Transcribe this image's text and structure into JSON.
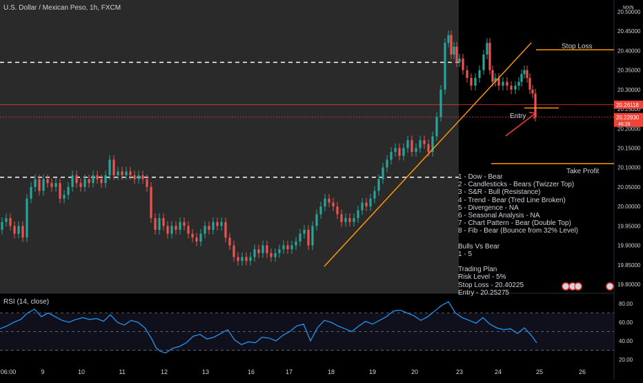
{
  "header": {
    "title": "U.S. Dollar / Mexican Peso, 1h, FXCM"
  },
  "price_axis": {
    "currency": "MXN",
    "ticks": [
      "20.50000",
      "20.45000",
      "20.40000",
      "20.35000",
      "20.30000",
      "20.25000",
      "20.20000",
      "20.15000",
      "20.10000",
      "20.05000",
      "20.00000",
      "19.95000",
      "19.90000",
      "19.85000",
      "19.80000"
    ],
    "current_price_label": "20.26118",
    "last_price_label": "20.22930",
    "countdown_label": "46:28"
  },
  "time_axis": {
    "ticks": [
      "06:00",
      "9",
      "10",
      "11",
      "12",
      "13",
      "16",
      "17",
      "18",
      "19",
      "20",
      "23",
      "24",
      "25",
      "26"
    ]
  },
  "annotations": {
    "stop_loss": "Stop Loss",
    "take_profit": "Take Profit",
    "entry": "Entry"
  },
  "trading_notes": [
    "1 - Dow - Bear",
    "2 - Candlesticks - Bears (Twizzer Top)",
    "3 - S&R - Bull (Resistance)",
    "4 - Trend - Bear (Tred Line Broken)",
    "5 - Divergence - NA",
    "6 - Seasonal Analysis - NA",
    "7 - Chart Pattern - Bear (Double Top)",
    "8 - Fib - Bear (Bounce from 32% Level)",
    "",
    "Bulls Vs Bear",
    "1 - 5",
    "",
    "Trading Plan",
    "Risk Level - 5%",
    "Stop Loss - 20.40225",
    "Entry - 20.25275"
  ],
  "rsi": {
    "label": "RSI (14, close)",
    "ticks": [
      "80.00",
      "60.00",
      "40.00",
      "20.00"
    ]
  },
  "colors": {
    "up": "#26a69a",
    "down": "#ef5350",
    "orange": "#ff9800",
    "rsi_line": "#2196f3",
    "red_line": "#f44336"
  },
  "chart_data": {
    "type": "candlestick",
    "symbol": "U.S. Dollar / Mexican Peso, 1h, FXCM",
    "ylim": [
      19.78,
      20.52
    ],
    "levels": {
      "stop_loss": 20.40225,
      "entry": 20.25275,
      "take_profit": 20.11,
      "current_price": 20.26118,
      "last_price": 20.2293,
      "resistance_upper": 20.37,
      "resistance_lower": 20.075
    },
    "close_path": [
      [
        0,
        19.94
      ],
      [
        6,
        19.96
      ],
      [
        12,
        19.97
      ],
      [
        18,
        19.95
      ],
      [
        24,
        19.93
      ],
      [
        30,
        19.95
      ],
      [
        36,
        19.92
      ],
      [
        42,
        20.02
      ],
      [
        48,
        20.05
      ],
      [
        54,
        20.07
      ],
      [
        60,
        20.04
      ],
      [
        66,
        20.07
      ],
      [
        72,
        20.06
      ],
      [
        78,
        20.05
      ],
      [
        84,
        20.06
      ],
      [
        90,
        20.02
      ],
      [
        96,
        20.03
      ],
      [
        102,
        20.05
      ],
      [
        108,
        20.08
      ],
      [
        114,
        20.06
      ],
      [
        120,
        20.05
      ],
      [
        126,
        20.07
      ],
      [
        132,
        20.06
      ],
      [
        138,
        20.08
      ],
      [
        144,
        20.07
      ],
      [
        150,
        20.06
      ],
      [
        156,
        20.08
      ],
      [
        162,
        20.12
      ],
      [
        168,
        20.08
      ],
      [
        174,
        20.09
      ],
      [
        180,
        20.08
      ],
      [
        186,
        20.09
      ],
      [
        192,
        20.08
      ],
      [
        198,
        20.07
      ],
      [
        204,
        20.08
      ],
      [
        210,
        20.07
      ],
      [
        216,
        20.05
      ],
      [
        222,
        19.97
      ],
      [
        228,
        19.94
      ],
      [
        234,
        19.97
      ],
      [
        240,
        19.95
      ],
      [
        246,
        19.93
      ],
      [
        252,
        19.95
      ],
      [
        258,
        19.94
      ],
      [
        264,
        19.96
      ],
      [
        270,
        19.95
      ],
      [
        276,
        19.93
      ],
      [
        282,
        19.92
      ],
      [
        288,
        19.91
      ],
      [
        294,
        19.93
      ],
      [
        300,
        19.95
      ],
      [
        306,
        19.94
      ],
      [
        312,
        19.96
      ],
      [
        318,
        19.95
      ],
      [
        324,
        19.96
      ],
      [
        330,
        19.92
      ],
      [
        336,
        19.9
      ],
      [
        342,
        19.87
      ],
      [
        348,
        19.86
      ],
      [
        354,
        19.87
      ],
      [
        360,
        19.86
      ],
      [
        366,
        19.87
      ],
      [
        372,
        19.89
      ],
      [
        378,
        19.88
      ],
      [
        384,
        19.9
      ],
      [
        390,
        19.88
      ],
      [
        396,
        19.87
      ],
      [
        402,
        19.88
      ],
      [
        408,
        19.89
      ],
      [
        414,
        19.9
      ],
      [
        420,
        19.89
      ],
      [
        426,
        19.9
      ],
      [
        432,
        19.91
      ],
      [
        438,
        19.93
      ],
      [
        444,
        19.94
      ],
      [
        450,
        19.9
      ],
      [
        456,
        19.95
      ],
      [
        462,
        19.98
      ],
      [
        468,
        20.0
      ],
      [
        474,
        20.02
      ],
      [
        480,
        20.01
      ],
      [
        486,
        20.0
      ],
      [
        492,
        19.98
      ],
      [
        498,
        19.96
      ],
      [
        504,
        19.97
      ],
      [
        510,
        19.96
      ],
      [
        516,
        19.97
      ],
      [
        522,
        19.99
      ],
      [
        528,
        20.01
      ],
      [
        534,
        20.0
      ],
      [
        540,
        20.02
      ],
      [
        546,
        20.04
      ],
      [
        552,
        20.07
      ],
      [
        558,
        20.1
      ],
      [
        564,
        20.12
      ],
      [
        570,
        20.14
      ],
      [
        576,
        20.15
      ],
      [
        582,
        20.13
      ],
      [
        588,
        20.15
      ],
      [
        594,
        20.17
      ],
      [
        600,
        20.14
      ],
      [
        606,
        20.15
      ],
      [
        612,
        20.17
      ],
      [
        618,
        20.16
      ],
      [
        624,
        20.14
      ],
      [
        630,
        20.18
      ],
      [
        636,
        20.23
      ],
      [
        642,
        20.3
      ],
      [
        648,
        20.42
      ],
      [
        652,
        20.44
      ],
      [
        656,
        20.39
      ],
      [
        660,
        20.41
      ],
      [
        664,
        20.37
      ],
      [
        668,
        20.38
      ],
      [
        674,
        20.35
      ],
      [
        680,
        20.33
      ],
      [
        686,
        20.31
      ],
      [
        692,
        20.33
      ],
      [
        698,
        20.35
      ],
      [
        704,
        20.39
      ],
      [
        708,
        20.42
      ],
      [
        712,
        20.35
      ],
      [
        716,
        20.32
      ],
      [
        720,
        20.33
      ],
      [
        726,
        20.31
      ],
      [
        732,
        20.32
      ],
      [
        738,
        20.31
      ],
      [
        744,
        20.3
      ],
      [
        750,
        20.31
      ],
      [
        754,
        20.32
      ],
      [
        758,
        20.34
      ],
      [
        762,
        20.35
      ],
      [
        766,
        20.33
      ],
      [
        770,
        20.3
      ],
      [
        774,
        20.29
      ],
      [
        778,
        20.23
      ]
    ],
    "rsi_values": [
      [
        0,
        53
      ],
      [
        10,
        56
      ],
      [
        20,
        60
      ],
      [
        30,
        63
      ],
      [
        40,
        70
      ],
      [
        50,
        74
      ],
      [
        60,
        66
      ],
      [
        70,
        70
      ],
      [
        80,
        66
      ],
      [
        90,
        62
      ],
      [
        100,
        60
      ],
      [
        110,
        63
      ],
      [
        120,
        65
      ],
      [
        130,
        63
      ],
      [
        140,
        64
      ],
      [
        150,
        61
      ],
      [
        160,
        68
      ],
      [
        170,
        60
      ],
      [
        180,
        57
      ],
      [
        190,
        62
      ],
      [
        200,
        60
      ],
      [
        210,
        54
      ],
      [
        220,
        42
      ],
      [
        226,
        33
      ],
      [
        232,
        29
      ],
      [
        240,
        27
      ],
      [
        250,
        32
      ],
      [
        260,
        34
      ],
      [
        270,
        38
      ],
      [
        280,
        45
      ],
      [
        290,
        47
      ],
      [
        300,
        42
      ],
      [
        310,
        44
      ],
      [
        320,
        48
      ],
      [
        330,
        52
      ],
      [
        340,
        41
      ],
      [
        350,
        36
      ],
      [
        360,
        39
      ],
      [
        370,
        38
      ],
      [
        380,
        44
      ],
      [
        390,
        43
      ],
      [
        400,
        40
      ],
      [
        410,
        46
      ],
      [
        420,
        50
      ],
      [
        430,
        56
      ],
      [
        440,
        58
      ],
      [
        450,
        40
      ],
      [
        460,
        54
      ],
      [
        470,
        62
      ],
      [
        480,
        60
      ],
      [
        490,
        56
      ],
      [
        500,
        53
      ],
      [
        510,
        50
      ],
      [
        520,
        56
      ],
      [
        530,
        61
      ],
      [
        540,
        58
      ],
      [
        550,
        62
      ],
      [
        560,
        66
      ],
      [
        570,
        72
      ],
      [
        580,
        73
      ],
      [
        590,
        70
      ],
      [
        600,
        67
      ],
      [
        610,
        62
      ],
      [
        620,
        66
      ],
      [
        630,
        72
      ],
      [
        640,
        78
      ],
      [
        650,
        82
      ],
      [
        660,
        70
      ],
      [
        670,
        65
      ],
      [
        680,
        62
      ],
      [
        690,
        59
      ],
      [
        700,
        65
      ],
      [
        710,
        58
      ],
      [
        720,
        54
      ],
      [
        730,
        52
      ],
      [
        740,
        53
      ],
      [
        750,
        48
      ],
      [
        760,
        54
      ],
      [
        770,
        46
      ],
      [
        778,
        38
      ]
    ]
  }
}
